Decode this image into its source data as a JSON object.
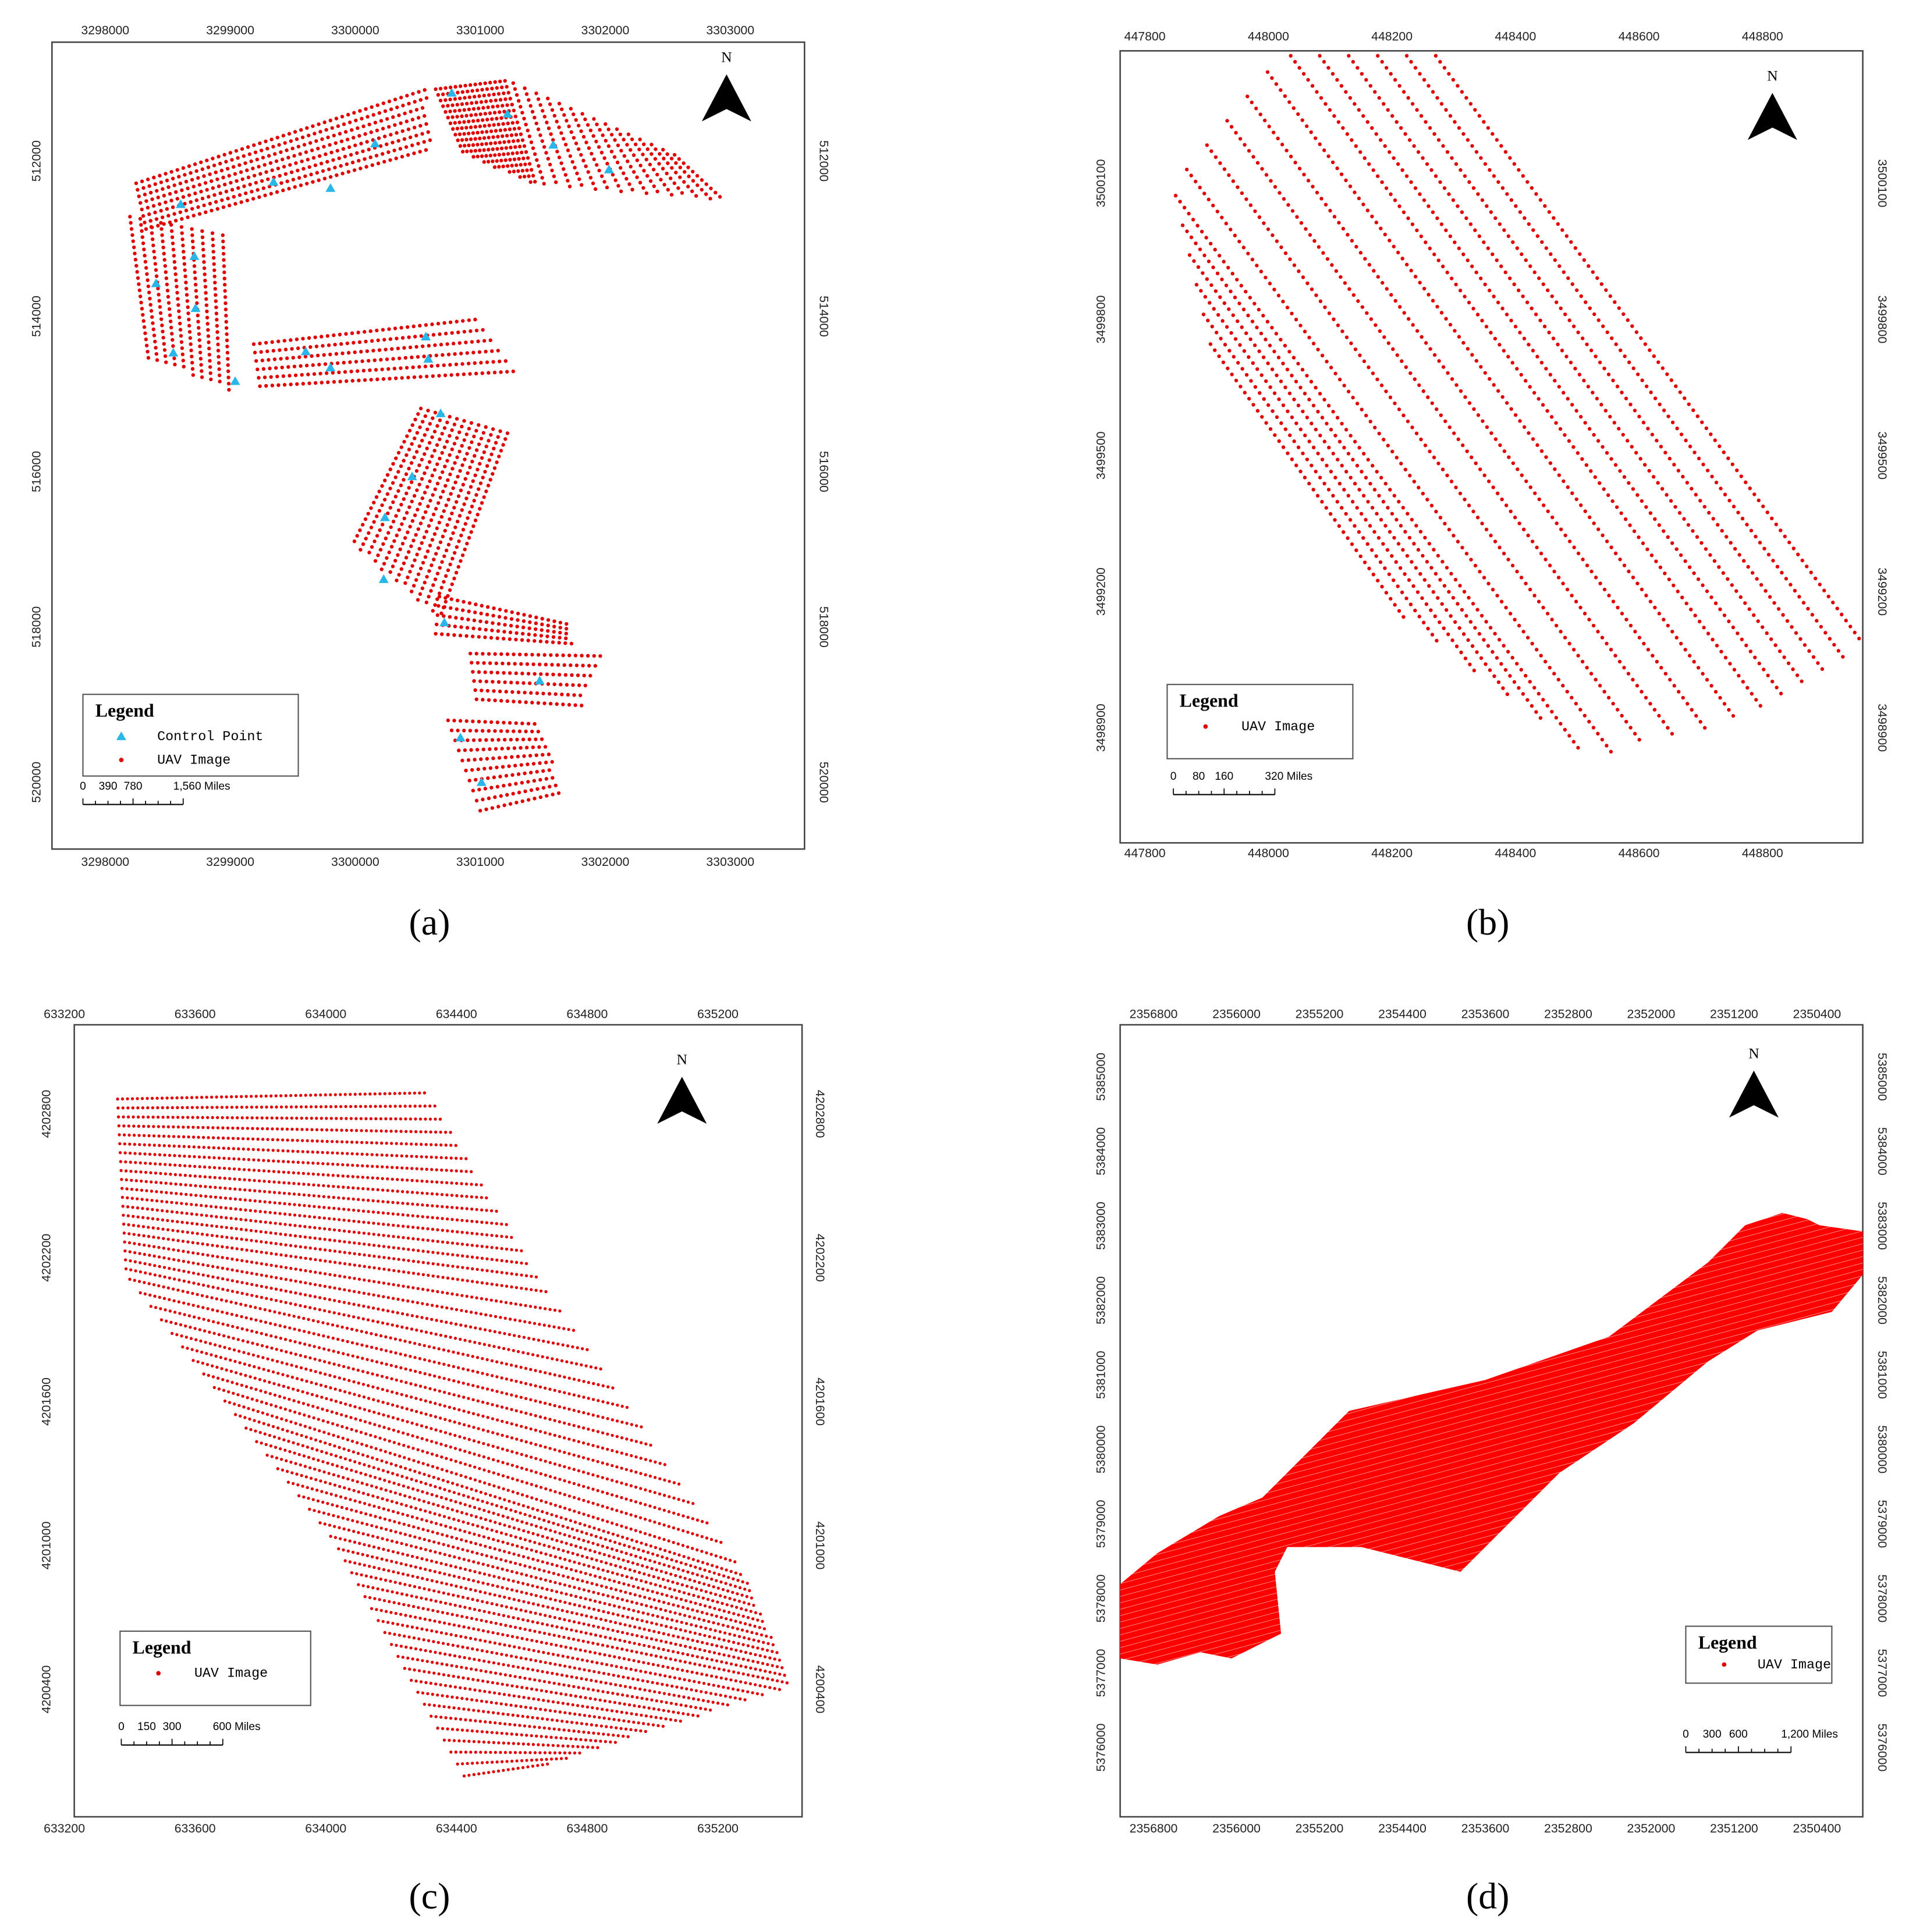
{
  "panels": [
    {
      "caption": "(a)",
      "north": "N",
      "top_ticks": [
        "3298000",
        "3299000",
        "3300000",
        "3301000",
        "3302000",
        "3303000"
      ],
      "bottom_ticks": [
        "3298000",
        "3299000",
        "3300000",
        "3301000",
        "3302000",
        "3303000"
      ],
      "left_ticks": [
        "512000",
        "514000",
        "516000",
        "518000",
        "520000"
      ],
      "right_ticks": [
        "512000",
        "514000",
        "516000",
        "518000",
        "520000"
      ],
      "legend": {
        "title": "Legend",
        "items": [
          "Control Point",
          "UAV Image"
        ]
      },
      "scale_bar": [
        "0",
        "390",
        "780",
        "1,560 Miles"
      ]
    },
    {
      "caption": "(b)",
      "north": "N",
      "top_ticks": [
        "447800",
        "448000",
        "448200",
        "448400",
        "448600",
        "448800"
      ],
      "bottom_ticks": [
        "447800",
        "448000",
        "448200",
        "448400",
        "448600",
        "448800"
      ],
      "left_ticks": [
        "3500100",
        "3499800",
        "3499500",
        "3499200",
        "3498900"
      ],
      "right_ticks": [
        "3500100",
        "3499800",
        "3499500",
        "3499200",
        "3498900"
      ],
      "legend": {
        "title": "Legend",
        "items": [
          "UAV Image"
        ]
      },
      "scale_bar": [
        "0",
        "80",
        "160",
        "320 Miles"
      ]
    },
    {
      "caption": "(c)",
      "north": "N",
      "top_ticks": [
        "633200",
        "633600",
        "634000",
        "634400",
        "634800",
        "635200"
      ],
      "bottom_ticks": [
        "633200",
        "633600",
        "634000",
        "634400",
        "634800",
        "635200"
      ],
      "left_ticks": [
        "4202800",
        "4202200",
        "4201600",
        "4201000",
        "4200400"
      ],
      "right_ticks": [
        "4202800",
        "4202200",
        "4201600",
        "4201000",
        "4200400"
      ],
      "legend": {
        "title": "Legend",
        "items": [
          "UAV Image"
        ]
      },
      "scale_bar": [
        "0",
        "150",
        "300",
        "600 Miles"
      ]
    },
    {
      "caption": "(d)",
      "north": "N",
      "top_ticks": [
        "2356800",
        "2356000",
        "2355200",
        "2354400",
        "2353600",
        "2352800",
        "2352000",
        "2351200",
        "2350400"
      ],
      "bottom_ticks": [
        "2356800",
        "2356000",
        "2355200",
        "2354400",
        "2353600",
        "2352800",
        "2352000",
        "2351200",
        "2350400"
      ],
      "left_ticks": [
        "5385000",
        "5384000",
        "5383000",
        "5382000",
        "5381000",
        "5380000",
        "5379000",
        "5378000",
        "5377000",
        "5376000"
      ],
      "right_ticks": [
        "5385000",
        "5384000",
        "5383000",
        "5382000",
        "5381000",
        "5380000",
        "5379000",
        "5378000",
        "5377000",
        "5376000"
      ],
      "legend": {
        "title": "Legend",
        "items": [
          "UAV Image"
        ]
      },
      "scale_bar": [
        "0",
        "300",
        "600",
        "1,200 Miles"
      ]
    }
  ]
}
